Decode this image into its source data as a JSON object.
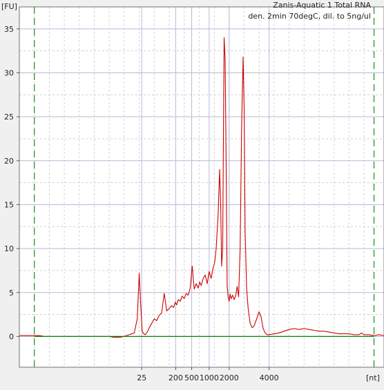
{
  "chart_data": {
    "type": "line",
    "title": "Zanis-Aquatic 1 Total RNA",
    "subtitle": "den. 2min 70degC, dil. to 5ng/ul",
    "ylabel": "[FU]",
    "xlabel": "[nt]",
    "ylim": [
      -3.5,
      37.5
    ],
    "y_ticks": [
      0,
      5,
      10,
      15,
      20,
      25,
      30,
      35
    ],
    "x_ticks": [
      {
        "label": "25",
        "t": 43.5
      },
      {
        "label": "200",
        "t": 50.3
      },
      {
        "label": "500",
        "t": 53.5
      },
      {
        "label": "1000",
        "t": 57.0
      },
      {
        "label": "2000",
        "t": 61.0
      },
      {
        "label": "4000",
        "t": 69.0
      }
    ],
    "x_axis_note": "electropherogram time axis, nonlinear size scale (nt)",
    "x_range_t": [
      19.0,
      92.0
    ],
    "grid": true,
    "markers": [
      22.0,
      90.0
    ],
    "series": [
      {
        "color": "#cc0000",
        "x": [
          19.0,
          20.0,
          21.0,
          22.0,
          23.0,
          24.0,
          25.0,
          26.0,
          27.0,
          28.0,
          29.0,
          30.0,
          31.0,
          32.0,
          33.0,
          34.0,
          35.0,
          36.0,
          37.0,
          38.0,
          39.0,
          40.0,
          41.0,
          42.0,
          42.6,
          43.0,
          43.3,
          43.6,
          43.9,
          44.2,
          44.6,
          45.0,
          45.5,
          46.0,
          46.5,
          47.0,
          47.5,
          48.0,
          48.5,
          49.0,
          49.5,
          49.9,
          50.2,
          50.5,
          50.8,
          51.2,
          51.6,
          52.0,
          52.4,
          52.8,
          53.2,
          53.6,
          54.0,
          54.4,
          54.8,
          55.1,
          55.4,
          55.8,
          56.2,
          56.6,
          57.0,
          57.4,
          57.8,
          58.1,
          58.4,
          58.8,
          59.1,
          59.3,
          59.5,
          59.7,
          60.0,
          60.2,
          60.4,
          60.6,
          60.8,
          61.0,
          61.2,
          61.4,
          61.7,
          62.0,
          62.3,
          62.6,
          62.9,
          63.2,
          63.5,
          63.8,
          64.0,
          64.2,
          64.5,
          64.8,
          65.2,
          65.6,
          66.0,
          66.5,
          67.0,
          67.4,
          67.8,
          68.2,
          68.6,
          69.0,
          70.0,
          71.0,
          72.0,
          73.0,
          74.0,
          75.0,
          76.0,
          77.0,
          78.0,
          79.0,
          80.0,
          81.0,
          82.0,
          83.0,
          84.0,
          85.0,
          86.0,
          87.0,
          87.5,
          88.0,
          89.0,
          90.0,
          91.0,
          92.0
        ],
        "y": [
          0.1,
          0.1,
          0.1,
          0.1,
          0.1,
          0.0,
          0.0,
          0.0,
          0.0,
          0.0,
          0.0,
          0.0,
          0.0,
          0.0,
          0.0,
          0.0,
          0.0,
          0.0,
          0.0,
          -0.1,
          -0.1,
          0.0,
          0.2,
          0.4,
          2.0,
          7.2,
          3.5,
          0.6,
          0.3,
          0.2,
          0.5,
          1.0,
          1.5,
          2.0,
          1.8,
          2.4,
          2.7,
          4.9,
          2.9,
          3.2,
          3.5,
          3.3,
          3.9,
          3.6,
          4.2,
          4.0,
          4.6,
          4.3,
          4.9,
          4.7,
          5.5,
          8.0,
          5.4,
          6.0,
          5.5,
          6.2,
          5.8,
          6.6,
          7.0,
          6.0,
          7.4,
          6.6,
          7.8,
          8.4,
          10.0,
          14.0,
          19.0,
          15.0,
          8.0,
          10.0,
          34.0,
          31.5,
          20.0,
          5.8,
          4.5,
          4.0,
          4.8,
          4.3,
          4.7,
          4.2,
          4.6,
          5.7,
          4.5,
          10.0,
          24.0,
          31.8,
          26.0,
          12.0,
          5.5,
          3.2,
          1.5,
          1.0,
          1.2,
          2.0,
          2.8,
          2.2,
          0.9,
          0.4,
          0.2,
          0.2,
          0.3,
          0.4,
          0.6,
          0.8,
          0.9,
          0.8,
          0.9,
          0.8,
          0.7,
          0.6,
          0.6,
          0.5,
          0.4,
          0.3,
          0.3,
          0.3,
          0.2,
          0.2,
          0.4,
          0.2,
          0.2,
          0.1,
          0.2,
          0.1
        ]
      },
      {
        "color": "#008000",
        "x": [
          22.0,
          90.0
        ],
        "y": [
          0.0,
          0.0
        ]
      }
    ]
  }
}
